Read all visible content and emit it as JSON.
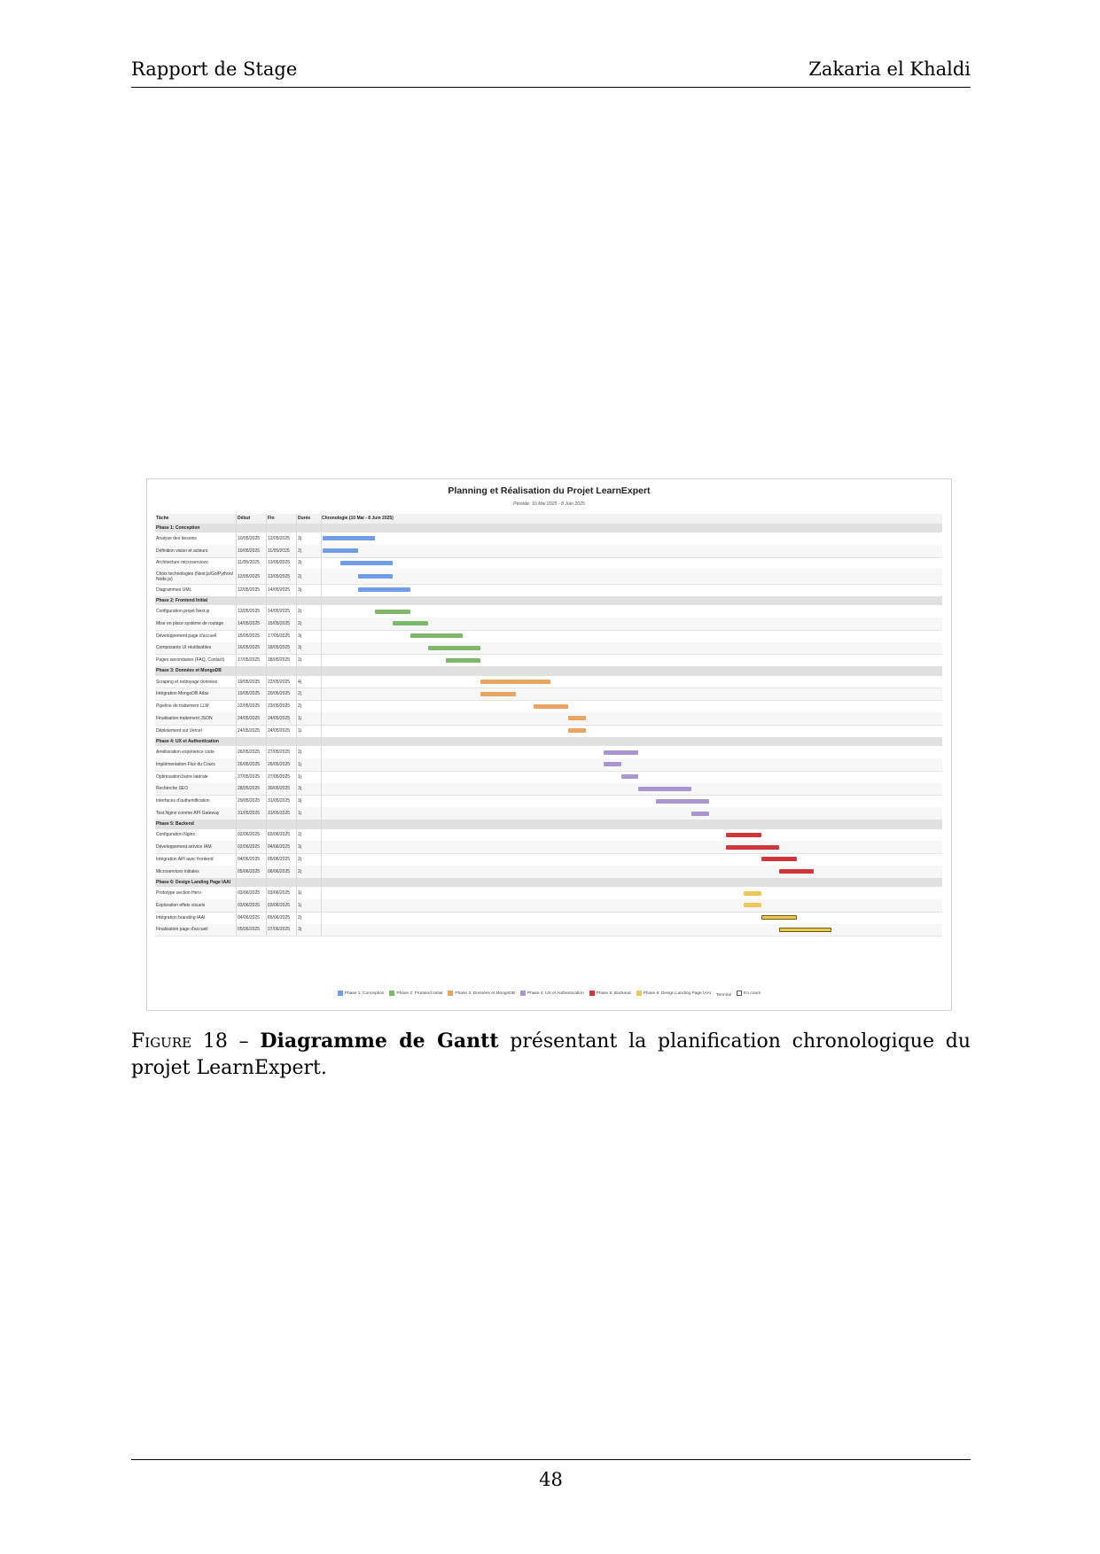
{
  "header": {
    "left": "Rapport de Stage",
    "right": "Zakaria el Khaldi"
  },
  "figure": {
    "title": "Planning et Réalisation du Projet LearnExpert",
    "subtitle": "Période: 10 Mai 2025 - 8 Juin 2025"
  },
  "chart_data": {
    "type": "table",
    "title": "Planning et Réalisation du Projet LearnExpert",
    "subtitle": "Période: 10 Mai 2025 - 8 Juin 2025",
    "columns": [
      "Tâche",
      "Début",
      "Fin",
      "Durée",
      "Chronologie (10 Mai - 8 Juin 2025)"
    ],
    "timeline": {
      "start": "10/05/2025",
      "end": "08/06/2025"
    },
    "rows": [
      {
        "phase": "Phase 1: Conception",
        "color": "#6d9ee6"
      },
      {
        "task": "Analyse des besoins",
        "start": "10/05/2025",
        "end": "12/05/2025",
        "duration": "3j",
        "phase_index": 1
      },
      {
        "task": "Définition vision et acteurs",
        "start": "10/05/2025",
        "end": "11/05/2025",
        "duration": "2j",
        "phase_index": 1
      },
      {
        "task": "Architecture microservices",
        "start": "11/05/2025",
        "end": "13/05/2025",
        "duration": "3j",
        "phase_index": 1
      },
      {
        "task": "Choix technologies (Next.js/Go/Python/ Node.js)",
        "start": "12/05/2025",
        "end": "13/05/2025",
        "duration": "2j",
        "phase_index": 1
      },
      {
        "task": "Diagrammes UML",
        "start": "12/05/2025",
        "end": "14/05/2025",
        "duration": "3j",
        "phase_index": 1
      },
      {
        "phase": "Phase 2: Frontend Initial",
        "color": "#7fb86a"
      },
      {
        "task": "Configuration projet Next.js",
        "start": "13/05/2025",
        "end": "14/05/2025",
        "duration": "2j",
        "phase_index": 2
      },
      {
        "task": "Mise en place système de routage",
        "start": "14/05/2025",
        "end": "15/05/2025",
        "duration": "2j",
        "phase_index": 2
      },
      {
        "task": "Développement page d'accueil",
        "start": "15/05/2025",
        "end": "17/05/2025",
        "duration": "3j",
        "phase_index": 2
      },
      {
        "task": "Composants UI réutilisables",
        "start": "16/05/2025",
        "end": "18/05/2025",
        "duration": "3j",
        "phase_index": 2
      },
      {
        "task": "Pages secondaires (FAQ, Contact)",
        "start": "17/05/2025",
        "end": "18/05/2025",
        "duration": "2j",
        "phase_index": 2
      },
      {
        "phase": "Phase 3: Données et MongoDB",
        "color": "#e9a463"
      },
      {
        "task": "Scraping et nettoyage données",
        "start": "19/05/2025",
        "end": "22/05/2025",
        "duration": "4j",
        "phase_index": 3
      },
      {
        "task": "Intégration MongoDB Atlas",
        "start": "19/05/2025",
        "end": "20/05/2025",
        "duration": "2j",
        "phase_index": 3
      },
      {
        "task": "Pipeline de traitement LLM",
        "start": "22/05/2025",
        "end": "23/05/2025",
        "duration": "2j",
        "phase_index": 3
      },
      {
        "task": "Finalisation traitement JSON",
        "start": "24/05/2025",
        "end": "24/05/2025",
        "duration": "1j",
        "phase_index": 3
      },
      {
        "task": "Déploiement sur Vercel",
        "start": "24/05/2025",
        "end": "24/05/2025",
        "duration": "1j",
        "phase_index": 3
      },
      {
        "phase": "Phase 4: UX et Authentication",
        "color": "#a996d0"
      },
      {
        "task": "Amélioration expérience code",
        "start": "26/05/2025",
        "end": "27/05/2025",
        "duration": "2j",
        "phase_index": 4
      },
      {
        "task": "Implémentation Flux du Cours",
        "start": "26/05/2025",
        "end": "26/05/2025",
        "duration": "1j",
        "phase_index": 4
      },
      {
        "task": "Optimisation barre latérale",
        "start": "27/05/2025",
        "end": "27/05/2025",
        "duration": "1j",
        "phase_index": 4
      },
      {
        "task": "Recherche SEO",
        "start": "28/05/2025",
        "end": "30/05/2025",
        "duration": "3j",
        "phase_index": 4
      },
      {
        "task": "Interfaces d'authentification",
        "start": "29/05/2025",
        "end": "31/05/2025",
        "duration": "3j",
        "phase_index": 4
      },
      {
        "task": "Test Nginx comme API Gateway",
        "start": "31/05/2025",
        "end": "31/05/2025",
        "duration": "1j",
        "phase_index": 4
      },
      {
        "phase": "Phase 5: Backend",
        "color": "#d2363d"
      },
      {
        "task": "Configuration Nginx",
        "start": "02/06/2025",
        "end": "03/06/2025",
        "duration": "2j",
        "phase_index": 5
      },
      {
        "task": "Développement service IAM",
        "start": "02/06/2025",
        "end": "04/06/2025",
        "duration": "3j",
        "phase_index": 5
      },
      {
        "task": "Intégration API avec frontend",
        "start": "04/06/2025",
        "end": "05/06/2025",
        "duration": "2j",
        "phase_index": 5
      },
      {
        "task": "Microservices initiales",
        "start": "05/06/2025",
        "end": "06/06/2025",
        "duration": "2j",
        "phase_index": 5
      },
      {
        "phase": "Phase 6: Design Landing Page IAAI",
        "color": "#eec759"
      },
      {
        "task": "Prototype section Hero",
        "start": "03/06/2025",
        "end": "03/06/2025",
        "duration": "1j",
        "phase_index": 6
      },
      {
        "task": "Exploration effets visuels",
        "start": "03/06/2025",
        "end": "03/06/2025",
        "duration": "1j",
        "phase_index": 6
      },
      {
        "task": "Intégration branding IAAI",
        "start": "04/06/2025",
        "end": "05/06/2025",
        "duration": "2j",
        "phase_index": 6,
        "status": "En cours"
      },
      {
        "task": "Finalisation page d'accueil",
        "start": "05/06/2025",
        "end": "07/06/2025",
        "duration": "3j",
        "phase_index": 6,
        "status": "En cours"
      }
    ],
    "legend": [
      {
        "label": "Phase 1: Conception",
        "color": "#6d9ee6"
      },
      {
        "label": "Phase 2: Frontend Initial",
        "color": "#7fb86a"
      },
      {
        "label": "Phase 3: Données et MongoDB",
        "color": "#e9a463"
      },
      {
        "label": "Phase 4: UX et Authentication",
        "color": "#a996d0"
      },
      {
        "label": "Phase 5: Backend",
        "color": "#d2363d"
      },
      {
        "label": "Phase 6: Design Landing Page IAAI",
        "color": "#eec759"
      },
      {
        "label": "Terminé",
        "color": ""
      },
      {
        "label": "En cours",
        "color": "#ffffff",
        "hollow": true
      }
    ]
  },
  "caption": {
    "label": "Figure 18 –",
    "bold": "Diagramme de Gantt",
    "text": " présentant la planification chronologique du projet LearnExpert."
  },
  "footer": {
    "page_number": "48"
  }
}
